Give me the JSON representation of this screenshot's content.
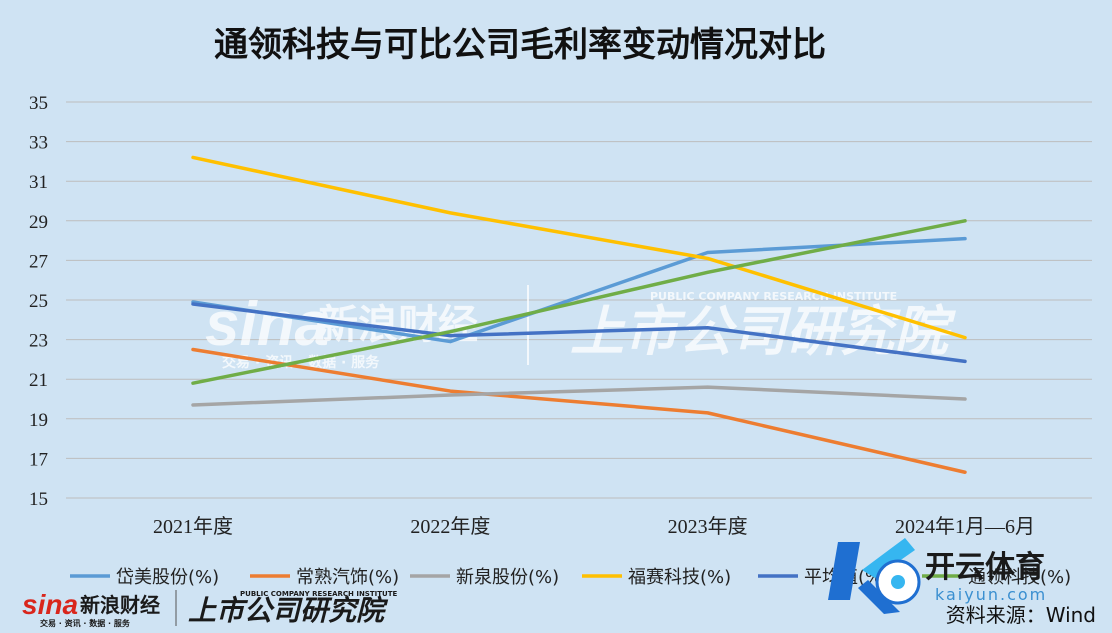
{
  "chart_data": {
    "type": "line",
    "title": "通领科技与可比公司毛利率变动情况对比",
    "categories": [
      "2021年度",
      "2022年度",
      "2023年度",
      "2024年1月—6月"
    ],
    "ylim": [
      15,
      35
    ],
    "yticks": [
      15,
      17,
      19,
      21,
      23,
      25,
      27,
      29,
      31,
      33,
      35
    ],
    "grid": "horizontal",
    "legend": "bottom",
    "series": [
      {
        "name": "岱美股份(%)",
        "color": "#5b9bd5",
        "values": [
          24.9,
          22.9,
          27.4,
          28.1
        ]
      },
      {
        "name": "常熟汽饰(%)",
        "color": "#ed7d31",
        "values": [
          22.5,
          20.4,
          19.3,
          16.3
        ]
      },
      {
        "name": "新泉股份(%)",
        "color": "#a5a5a5",
        "values": [
          19.7,
          20.2,
          20.6,
          20.0
        ]
      },
      {
        "name": "福赛科技(%)",
        "color": "#ffc000",
        "values": [
          32.2,
          29.4,
          27.1,
          23.1
        ]
      },
      {
        "name": "平均值(%)",
        "color": "#4472c4",
        "values": [
          24.8,
          23.2,
          23.6,
          21.9
        ]
      },
      {
        "name": "通领科技(%)",
        "color": "#70ad47",
        "values": [
          20.8,
          23.4,
          26.4,
          29.0
        ]
      }
    ],
    "source": "资料来源：Wind"
  },
  "watermark": {
    "sina": "sina",
    "sina_cn": "新浪财经",
    "sina_sub": "交易 · 资讯 · 数据 · 服务",
    "research": "上市公司研究院",
    "research_en": "PUBLIC COMPANY RESEARCH INSTITUTE"
  },
  "logo": {
    "name": "开云体育",
    "domain": "kaiyun.com"
  }
}
